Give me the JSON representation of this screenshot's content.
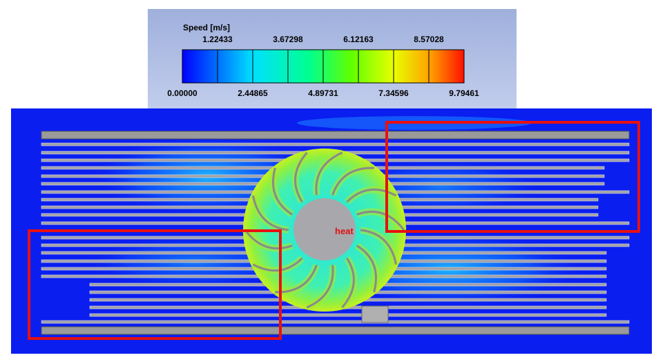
{
  "legend": {
    "title": "Speed [m/s]",
    "ticks": [
      {
        "value": 0,
        "label": "0.00000"
      },
      {
        "value": 1.22433,
        "label": "1.22433"
      },
      {
        "value": 2.44865,
        "label": "2.44865"
      },
      {
        "value": 3.67298,
        "label": "3.67298"
      },
      {
        "value": 4.89731,
        "label": "4.89731"
      },
      {
        "value": 6.12163,
        "label": "6.12163"
      },
      {
        "value": 7.34596,
        "label": "7.34596"
      },
      {
        "value": 8.57028,
        "label": "8.57028"
      },
      {
        "value": 9.79461,
        "label": "9.79461"
      }
    ]
  },
  "field": {
    "label": "heat"
  }
}
